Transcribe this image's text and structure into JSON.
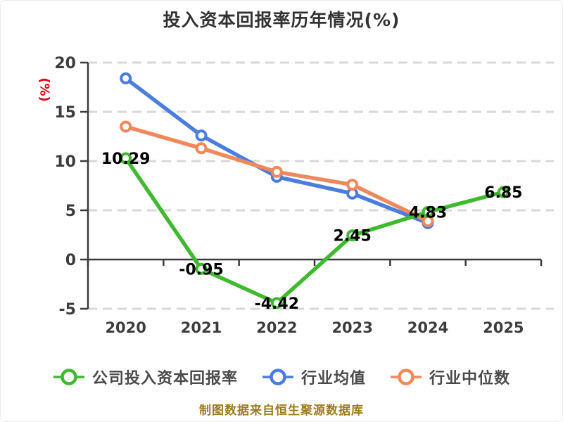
{
  "title": "投入资本回报率历年情况(%)",
  "footer": "制图数据来自恒生聚源数据库",
  "colors": {
    "company_series": "#3fba2f",
    "industry_mean_series": "#4a7de0",
    "industry_median_series": "#f0895a",
    "axis": "#3c3c3c",
    "gridline": "#d8d8d8",
    "tick_label": "#3d3d3d",
    "data_label": "#000000",
    "y_unit_label": "#e60012",
    "title_text": "#333333",
    "footer_text": "#9d7b1d",
    "marker_fill": "#ffffff"
  },
  "chart_data": {
    "type": "line",
    "title": "投入资本回报率历年情况(%)",
    "xlabel": "",
    "ylabel": "(%)",
    "categories": [
      "2020",
      "2021",
      "2022",
      "2023",
      "2024",
      "2025"
    ],
    "ylim": [
      -5,
      20
    ],
    "yticks": [
      20,
      15,
      10,
      5,
      0,
      -5
    ],
    "grid": "horizontal-dashed",
    "legend_position": "bottom",
    "series": [
      {
        "name": "公司投入资本回报率",
        "color": "#3fba2f",
        "values": [
          10.29,
          -0.95,
          -4.42,
          2.45,
          4.83,
          6.85
        ],
        "labels": [
          "10.29",
          "-0.95",
          "-4.42",
          "2.45",
          "4.83",
          "6.85"
        ]
      },
      {
        "name": "行业均值",
        "color": "#4a7de0",
        "values": [
          18.4,
          12.6,
          8.4,
          6.7,
          3.7,
          null
        ],
        "labels": null
      },
      {
        "name": "行业中位数",
        "color": "#f0895a",
        "values": [
          13.5,
          11.3,
          8.9,
          7.6,
          3.9,
          null
        ],
        "labels": null
      }
    ]
  }
}
